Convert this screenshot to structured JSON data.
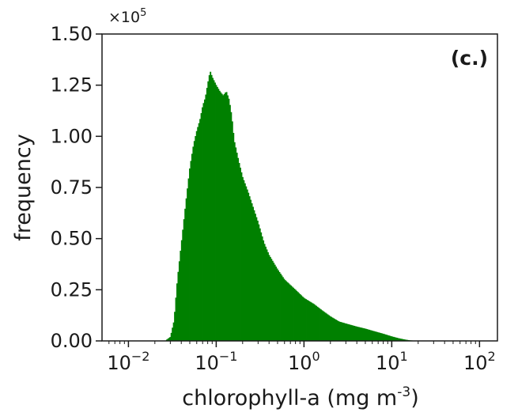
{
  "chart_data": {
    "type": "bar",
    "panel_label": "(c.)",
    "xlabel": "chlorophyll-a (mg m-3)",
    "xlabel_base": "chlorophyll-a (mg m",
    "xlabel_exp": "-3",
    "xlabel_close": ")",
    "ylabel": "frequency",
    "y_scale_label": "×10",
    "y_scale_exp": "5",
    "x_scale": "log",
    "xlim": [
      0.005,
      160
    ],
    "ylim": [
      0,
      150000
    ],
    "x_ticks": [
      {
        "value": 0.01,
        "base": "10",
        "exp": "−2"
      },
      {
        "value": 0.1,
        "base": "10",
        "exp": "−1"
      },
      {
        "value": 1,
        "base": "10",
        "exp": "0"
      },
      {
        "value": 10,
        "base": "10",
        "exp": "1"
      },
      {
        "value": 100,
        "base": "10",
        "exp": "2"
      }
    ],
    "y_ticks": [
      {
        "value": 0,
        "label": "0.00"
      },
      {
        "value": 25000,
        "label": "0.25"
      },
      {
        "value": 50000,
        "label": "0.50"
      },
      {
        "value": 75000,
        "label": "0.75"
      },
      {
        "value": 100000,
        "label": "1.00"
      },
      {
        "value": 125000,
        "label": "1.25"
      },
      {
        "value": 150000,
        "label": "1.50"
      }
    ],
    "grid": false,
    "bar_color": "#008000",
    "profile": [
      [
        0.026,
        0
      ],
      [
        0.03,
        2000
      ],
      [
        0.033,
        10000
      ],
      [
        0.036,
        30000
      ],
      [
        0.04,
        48000
      ],
      [
        0.045,
        68000
      ],
      [
        0.05,
        85000
      ],
      [
        0.055,
        96000
      ],
      [
        0.06,
        103000
      ],
      [
        0.065,
        108000
      ],
      [
        0.07,
        115000
      ],
      [
        0.075,
        119000
      ],
      [
        0.08,
        126000
      ],
      [
        0.085,
        132000
      ],
      [
        0.09,
        129000
      ],
      [
        0.1,
        125000
      ],
      [
        0.11,
        122000
      ],
      [
        0.12,
        120000
      ],
      [
        0.13,
        122000
      ],
      [
        0.14,
        118000
      ],
      [
        0.15,
        110000
      ],
      [
        0.16,
        98000
      ],
      [
        0.18,
        88000
      ],
      [
        0.2,
        80000
      ],
      [
        0.23,
        73000
      ],
      [
        0.26,
        66000
      ],
      [
        0.3,
        58000
      ],
      [
        0.35,
        48000
      ],
      [
        0.4,
        42000
      ],
      [
        0.5,
        35000
      ],
      [
        0.6,
        30000
      ],
      [
        0.8,
        25000
      ],
      [
        1.0,
        21000
      ],
      [
        1.3,
        18000
      ],
      [
        1.6,
        15000
      ],
      [
        2.0,
        12000
      ],
      [
        2.5,
        9500
      ],
      [
        3.0,
        8500
      ],
      [
        4.0,
        7000
      ],
      [
        5.0,
        6000
      ],
      [
        6.0,
        5000
      ],
      [
        8.0,
        3500
      ],
      [
        10,
        2200
      ],
      [
        12,
        1300
      ],
      [
        14,
        700
      ],
      [
        16,
        300
      ],
      [
        20,
        0
      ]
    ]
  }
}
